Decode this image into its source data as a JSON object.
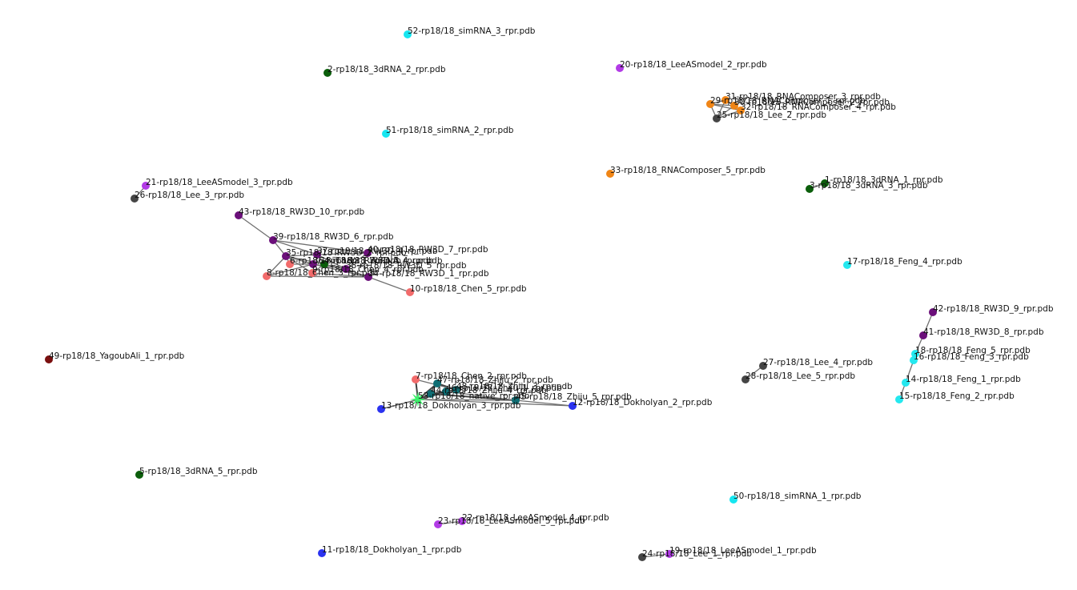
{
  "colors": {
    "3dRNA": "#0b5e0b",
    "simRNA": "#15e6f0",
    "LeeASmodel": "#b23be6",
    "Lee": "#454545",
    "RNAComposer": "#f08516",
    "RW3D": "#6b0f7a",
    "Chen": "#f26b6b",
    "Feng": "#24e8ef",
    "Dokholyan": "#2b33f0",
    "Zhiju": "#0f6e74",
    "YagoubAli": "#7a0f0f",
    "native": "#3cf06a"
  },
  "nodes": [
    {
      "id": "n52",
      "label": "52-rp18/18_simRNA_3_rpr.pdb",
      "group": "simRNA"
    },
    {
      "id": "n2",
      "label": "2-rp18/18_3dRNA_2_rpr.pdb",
      "group": "3dRNA"
    },
    {
      "id": "n20",
      "label": "20-rp18/18_LeeASmodel_2_rpr.pdb",
      "group": "LeeASmodel"
    },
    {
      "id": "n31",
      "label": "31-rp18/18_RNAComposer_3_rpr.pdb",
      "group": "RNAComposer"
    },
    {
      "id": "n29",
      "label": "29-rp18/18_RNAComposer_1_rpr.pdb",
      "group": "RNAComposer"
    },
    {
      "id": "n30",
      "label": "30-rp18/18_RNAComposer_2_rpr.pdb",
      "group": "RNAComposer"
    },
    {
      "id": "n32",
      "label": "32-rp18/18_RNAComposer_4_rpr.pdb",
      "group": "RNAComposer"
    },
    {
      "id": "n25",
      "label": "25-rp18/18_Lee_2_rpr.pdb",
      "group": "Lee"
    },
    {
      "id": "n51",
      "label": "51-rp18/18_simRNA_2_rpr.pdb",
      "group": "simRNA"
    },
    {
      "id": "n33",
      "label": "33-rp18/18_RNAComposer_5_rpr.pdb",
      "group": "RNAComposer"
    },
    {
      "id": "n1",
      "label": "1-rp18/18_3dRNA_1_rpr.pdb",
      "group": "3dRNA"
    },
    {
      "id": "n3",
      "label": "3-rp18/18_3dRNA_3_rpr.pdb",
      "group": "3dRNA"
    },
    {
      "id": "n21",
      "label": "21-rp18/18_LeeASmodel_3_rpr.pdb",
      "group": "LeeASmodel"
    },
    {
      "id": "n26",
      "label": "26-rp18/18_Lee_3_rpr.pdb",
      "group": "Lee"
    },
    {
      "id": "n43",
      "label": "43-rp18/18_RW3D_10_rpr.pdb",
      "group": "RW3D"
    },
    {
      "id": "n39",
      "label": "39-rp18/18_RW3D_6_rpr.pdb",
      "group": "RW3D"
    },
    {
      "id": "n40",
      "label": "40-rp18/18_RW3D_7_rpr.pdb",
      "group": "RW3D"
    },
    {
      "id": "n35",
      "label": "35-rp18/18_RW3D_2_rpr.pdb",
      "group": "RW3D"
    },
    {
      "id": "n37",
      "label": "37-rp18/18_RW3D_4_rpr.pdb",
      "group": "RW3D"
    },
    {
      "id": "n36",
      "label": "36-rp18/18_RW3D_3_rpr.pdb",
      "group": "RW3D"
    },
    {
      "id": "n38",
      "label": "38-rp18/18_RW3D_5_rpr.pdb",
      "group": "RW3D"
    },
    {
      "id": "n34",
      "label": "34-rp18/18_RW3D_1_rpr.pdb",
      "group": "RW3D"
    },
    {
      "id": "n4",
      "label": "4-rp18/18_3dRNA_4_rpr.pdb",
      "group": "3dRNA"
    },
    {
      "id": "n6",
      "label": "6-rp18/18_Chen_1_rpr.pdb",
      "group": "Chen"
    },
    {
      "id": "n9",
      "label": "9-rp18/18_Chen_4_rpr.pdb",
      "group": "Chen"
    },
    {
      "id": "n8",
      "label": "8-rp18/18_Chen_3_rpr.pdb",
      "group": "Chen"
    },
    {
      "id": "n10",
      "label": "10-rp18/18_Chen_5_rpr.pdb",
      "group": "Chen"
    },
    {
      "id": "n17",
      "label": "17-rp18/18_Feng_4_rpr.pdb",
      "group": "Feng"
    },
    {
      "id": "n42",
      "label": "42-rp18/18_RW3D_9_rpr.pdb",
      "group": "RW3D"
    },
    {
      "id": "n41",
      "label": "41-rp18/18_RW3D_8_rpr.pdb",
      "group": "RW3D"
    },
    {
      "id": "n18",
      "label": "18-rp18/18_Feng_5_rpr.pdb",
      "group": "Feng"
    },
    {
      "id": "n16",
      "label": "16-rp18/18_Feng_3_rpr.pdb",
      "group": "Feng"
    },
    {
      "id": "n14",
      "label": "14-rp18/18_Feng_1_rpr.pdb",
      "group": "Feng"
    },
    {
      "id": "n15",
      "label": "15-rp18/18_Feng_2_rpr.pdb",
      "group": "Feng"
    },
    {
      "id": "n49",
      "label": "49-rp18/18_YagoubAli_1_rpr.pdb",
      "group": "YagoubAli"
    },
    {
      "id": "n7",
      "label": "7-rp18/18_Chen_2_rpr.pdb",
      "group": "Chen"
    },
    {
      "id": "n47",
      "label": "47-rp18/18_Zhiju_2_rpr.pdb",
      "group": "Zhiju"
    },
    {
      "id": "n48",
      "label": "48-rp18/18_Zhiju_3_rpr.pdb",
      "group": "Zhiju"
    },
    {
      "id": "n46",
      "label": "46-rp18/18_Zhiju_1_rpr.pdb",
      "group": "Zhiju"
    },
    {
      "id": "n44",
      "label": "44-rp18/18_Zhiju_4_rpr.pdb",
      "group": "Zhiju"
    },
    {
      "id": "n45",
      "label": "45-rp18/18_Zhiju_5_rpr.pdb",
      "group": "Zhiju"
    },
    {
      "id": "n53",
      "label": "53-rp18/18_native_rpr.pdb",
      "group": "native",
      "shape": "star"
    },
    {
      "id": "n12",
      "label": "12-rp18/18_Dokholyan_2_rpr.pdb",
      "group": "Dokholyan"
    },
    {
      "id": "n13",
      "label": "13-rp18/18_Dokholyan_3_rpr.pdb",
      "group": "Dokholyan"
    },
    {
      "id": "n27",
      "label": "27-rp18/18_Lee_4_rpr.pdb",
      "group": "Lee"
    },
    {
      "id": "n28",
      "label": "28-rp18/18_Lee_5_rpr.pdb",
      "group": "Lee"
    },
    {
      "id": "n5",
      "label": "5-rp18/18_3dRNA_5_rpr.pdb",
      "group": "3dRNA"
    },
    {
      "id": "n50",
      "label": "50-rp18/18_simRNA_1_rpr.pdb",
      "group": "simRNA"
    },
    {
      "id": "n22",
      "label": "22-rp18/18_LeeASmodel_4_rpr.pdb",
      "group": "LeeASmodel"
    },
    {
      "id": "n23",
      "label": "23-rp18/18_LeeASmodel_5_rpr.pdb",
      "group": "LeeASmodel"
    },
    {
      "id": "n11",
      "label": "11-rp18/18_Dokholyan_1_rpr.pdb",
      "group": "Dokholyan"
    },
    {
      "id": "n19",
      "label": "19-rp18/18_LeeASmodel_1_rpr.pdb",
      "group": "LeeASmodel"
    },
    {
      "id": "n24",
      "label": "24-rp18/18_Lee_1_rpr.pdb",
      "group": "Lee"
    }
  ],
  "edges": [
    [
      "n21",
      "n26"
    ],
    [
      "n29",
      "n31"
    ],
    [
      "n29",
      "n30"
    ],
    [
      "n29",
      "n32"
    ],
    [
      "n29",
      "n25"
    ],
    [
      "n31",
      "n30"
    ],
    [
      "n31",
      "n32"
    ],
    [
      "n30",
      "n32"
    ],
    [
      "n25",
      "n30"
    ],
    [
      "n25",
      "n32"
    ],
    [
      "n25",
      "n31"
    ],
    [
      "n1",
      "n3"
    ],
    [
      "n43",
      "n39"
    ],
    [
      "n39",
      "n35"
    ],
    [
      "n39",
      "n40"
    ],
    [
      "n39",
      "n37"
    ],
    [
      "n35",
      "n37"
    ],
    [
      "n35",
      "n9"
    ],
    [
      "n35",
      "n8"
    ],
    [
      "n35",
      "n6"
    ],
    [
      "n35",
      "n36"
    ],
    [
      "n37",
      "n40"
    ],
    [
      "n37",
      "n4"
    ],
    [
      "n37",
      "n38"
    ],
    [
      "n40",
      "n38"
    ],
    [
      "n36",
      "n38"
    ],
    [
      "n38",
      "n34"
    ],
    [
      "n36",
      "n34"
    ],
    [
      "n34",
      "n10"
    ],
    [
      "n6",
      "n36"
    ],
    [
      "n8",
      "n36"
    ],
    [
      "n9",
      "n4"
    ],
    [
      "n4",
      "n38"
    ],
    [
      "n9",
      "n34"
    ],
    [
      "n8",
      "n34"
    ],
    [
      "n35",
      "n4"
    ],
    [
      "n42",
      "n41"
    ],
    [
      "n41",
      "n18"
    ],
    [
      "n18",
      "n16"
    ],
    [
      "n16",
      "n14"
    ],
    [
      "n14",
      "n15"
    ],
    [
      "n7",
      "n53"
    ],
    [
      "n47",
      "n53"
    ],
    [
      "n48",
      "n53"
    ],
    [
      "n46",
      "n53"
    ],
    [
      "n44",
      "n53"
    ],
    [
      "n45",
      "n53"
    ],
    [
      "n13",
      "n53"
    ],
    [
      "n12",
      "n53"
    ],
    [
      "n45",
      "n12"
    ],
    [
      "n47",
      "n48"
    ],
    [
      "n48",
      "n46"
    ],
    [
      "n46",
      "n44"
    ],
    [
      "n44",
      "n45"
    ],
    [
      "n47",
      "n44"
    ],
    [
      "n7",
      "n48"
    ],
    [
      "n13",
      "n48"
    ],
    [
      "n45",
      "n46"
    ],
    [
      "n27",
      "n28"
    ],
    [
      "n22",
      "n23"
    ],
    [
      "n19",
      "n24"
    ]
  ]
}
